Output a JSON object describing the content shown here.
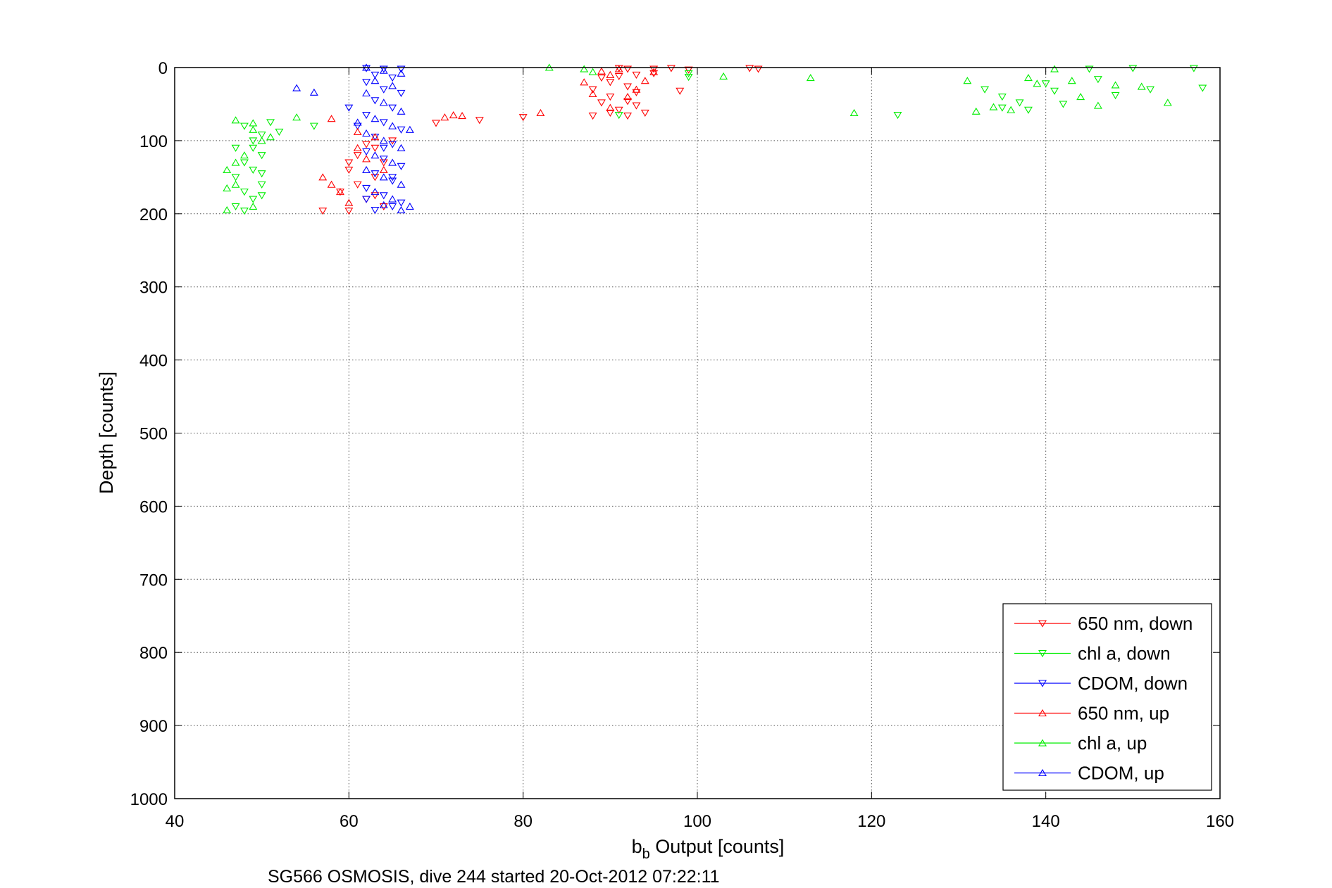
{
  "chart_data": {
    "type": "scatter",
    "title": "",
    "xlabel": {
      "main": "b",
      "sub": "b",
      "rest": " Output [counts]"
    },
    "ylabel": "Depth [counts]",
    "footer": "SG566 OSMOSIS, dive 244 started 20-Oct-2012 07:22:11",
    "xlim": [
      40,
      160
    ],
    "ylim": [
      0,
      1000
    ],
    "y_reversed": true,
    "grid": true,
    "xticks": [
      "40",
      "60",
      "80",
      "100",
      "120",
      "140",
      "160"
    ],
    "yticks": [
      "0",
      "100",
      "200",
      "300",
      "400",
      "500",
      "600",
      "700",
      "800",
      "900",
      "1000"
    ],
    "legend_position": "bottom-right",
    "series": [
      {
        "name": "650 nm, down",
        "color": "#ff0000",
        "marker": "triangle-down",
        "points": [
          [
            91,
            1
          ],
          [
            92,
            2
          ],
          [
            95,
            2
          ],
          [
            97,
            1
          ],
          [
            99,
            3
          ],
          [
            106,
            1
          ],
          [
            107,
            2
          ],
          [
            95,
            8
          ],
          [
            93,
            10
          ],
          [
            91,
            12
          ],
          [
            89,
            14
          ],
          [
            90,
            20
          ],
          [
            92,
            26
          ],
          [
            88,
            30
          ],
          [
            93,
            34
          ],
          [
            98,
            32
          ],
          [
            90,
            40
          ],
          [
            92,
            46
          ],
          [
            89,
            48
          ],
          [
            93,
            52
          ],
          [
            91,
            58
          ],
          [
            94,
            62
          ],
          [
            92,
            66
          ],
          [
            88,
            66
          ],
          [
            90,
            62
          ],
          [
            80,
            68
          ],
          [
            70,
            76
          ],
          [
            75,
            72
          ],
          [
            65,
            100
          ],
          [
            63,
            110
          ],
          [
            61,
            120
          ],
          [
            64,
            130
          ],
          [
            60,
            140
          ],
          [
            63,
            150
          ],
          [
            61,
            160
          ],
          [
            59,
            170
          ],
          [
            62,
            180
          ],
          [
            64,
            190
          ],
          [
            60,
            196
          ],
          [
            57,
            196
          ],
          [
            63,
            175
          ],
          [
            60,
            130
          ],
          [
            62,
            105
          ]
        ]
      },
      {
        "name": "chl a, down",
        "color": "#00ee00",
        "marker": "triangle-down",
        "points": [
          [
            91,
            65
          ],
          [
            99,
            8
          ],
          [
            99,
            13
          ],
          [
            123,
            65
          ],
          [
            133,
            30
          ],
          [
            135,
            40
          ],
          [
            135,
            55
          ],
          [
            137,
            48
          ],
          [
            138,
            58
          ],
          [
            140,
            22
          ],
          [
            141,
            32
          ],
          [
            142,
            50
          ],
          [
            145,
            2
          ],
          [
            146,
            16
          ],
          [
            148,
            38
          ],
          [
            150,
            1
          ],
          [
            152,
            30
          ],
          [
            157,
            1
          ],
          [
            158,
            28
          ],
          [
            56,
            80
          ],
          [
            48,
            80
          ],
          [
            52,
            88
          ],
          [
            50,
            92
          ],
          [
            49,
            100
          ],
          [
            47,
            110
          ],
          [
            50,
            120
          ],
          [
            48,
            130
          ],
          [
            49,
            140
          ],
          [
            47,
            150
          ],
          [
            50,
            160
          ],
          [
            48,
            170
          ],
          [
            49,
            180
          ],
          [
            47,
            190
          ],
          [
            48,
            196
          ],
          [
            50,
            175
          ],
          [
            51,
            75
          ],
          [
            49,
            110
          ],
          [
            50,
            145
          ]
        ]
      },
      {
        "name": "CDOM, down",
        "color": "#0000ff",
        "marker": "triangle-down",
        "points": [
          [
            62,
            1
          ],
          [
            64,
            2
          ],
          [
            66,
            2
          ],
          [
            63,
            10
          ],
          [
            65,
            14
          ],
          [
            62,
            20
          ],
          [
            64,
            30
          ],
          [
            66,
            35
          ],
          [
            63,
            45
          ],
          [
            65,
            55
          ],
          [
            62,
            65
          ],
          [
            64,
            75
          ],
          [
            66,
            85
          ],
          [
            63,
            95
          ],
          [
            65,
            105
          ],
          [
            62,
            115
          ],
          [
            64,
            125
          ],
          [
            66,
            135
          ],
          [
            63,
            145
          ],
          [
            65,
            155
          ],
          [
            62,
            165
          ],
          [
            64,
            175
          ],
          [
            66,
            185
          ],
          [
            63,
            195
          ],
          [
            65,
            190
          ],
          [
            60,
            55
          ],
          [
            61,
            80
          ],
          [
            64,
            110
          ],
          [
            65,
            150
          ],
          [
            62,
            180
          ]
        ]
      },
      {
        "name": "650 nm, up",
        "color": "#ff0000",
        "marker": "triangle-up",
        "points": [
          [
            71,
            68
          ],
          [
            72,
            65
          ],
          [
            73,
            66
          ],
          [
            82,
            62
          ],
          [
            87,
            20
          ],
          [
            89,
            5
          ],
          [
            90,
            10
          ],
          [
            91,
            2
          ],
          [
            94,
            18
          ],
          [
            93,
            30
          ],
          [
            95,
            6
          ],
          [
            88,
            36
          ],
          [
            92,
            40
          ],
          [
            90,
            55
          ],
          [
            58,
            160
          ],
          [
            59,
            170
          ],
          [
            57,
            150
          ],
          [
            61,
            110
          ],
          [
            63,
            95
          ],
          [
            60,
            185
          ],
          [
            62,
            125
          ],
          [
            64,
            140
          ],
          [
            58,
            70
          ],
          [
            61,
            88
          ]
        ]
      },
      {
        "name": "chl a, up",
        "color": "#00ee00",
        "marker": "triangle-up",
        "points": [
          [
            83,
            0
          ],
          [
            87,
            2
          ],
          [
            88,
            6
          ],
          [
            103,
            12
          ],
          [
            113,
            14
          ],
          [
            118,
            62
          ],
          [
            131,
            18
          ],
          [
            132,
            60
          ],
          [
            134,
            54
          ],
          [
            136,
            58
          ],
          [
            138,
            14
          ],
          [
            139,
            22
          ],
          [
            141,
            2
          ],
          [
            143,
            18
          ],
          [
            144,
            40
          ],
          [
            146,
            52
          ],
          [
            148,
            24
          ],
          [
            151,
            26
          ],
          [
            154,
            48
          ],
          [
            54,
            68
          ],
          [
            47,
            72
          ],
          [
            49,
            76
          ],
          [
            46,
            195
          ],
          [
            46,
            140
          ],
          [
            47,
            160
          ],
          [
            48,
            120
          ],
          [
            49,
            85
          ],
          [
            50,
            100
          ],
          [
            46,
            165
          ],
          [
            47,
            130
          ],
          [
            49,
            190
          ],
          [
            51,
            95
          ]
        ]
      },
      {
        "name": "CDOM, up",
        "color": "#0000ff",
        "marker": "triangle-up",
        "points": [
          [
            54,
            28
          ],
          [
            56,
            34
          ],
          [
            62,
            0
          ],
          [
            64,
            4
          ],
          [
            66,
            8
          ],
          [
            63,
            18
          ],
          [
            65,
            25
          ],
          [
            62,
            35
          ],
          [
            64,
            48
          ],
          [
            66,
            60
          ],
          [
            63,
            70
          ],
          [
            65,
            80
          ],
          [
            62,
            90
          ],
          [
            64,
            100
          ],
          [
            66,
            110
          ],
          [
            63,
            120
          ],
          [
            65,
            130
          ],
          [
            62,
            140
          ],
          [
            64,
            150
          ],
          [
            66,
            160
          ],
          [
            63,
            170
          ],
          [
            65,
            180
          ],
          [
            67,
            190
          ],
          [
            66,
            195
          ],
          [
            64,
            188
          ],
          [
            67,
            85
          ],
          [
            61,
            75
          ]
        ]
      }
    ]
  }
}
